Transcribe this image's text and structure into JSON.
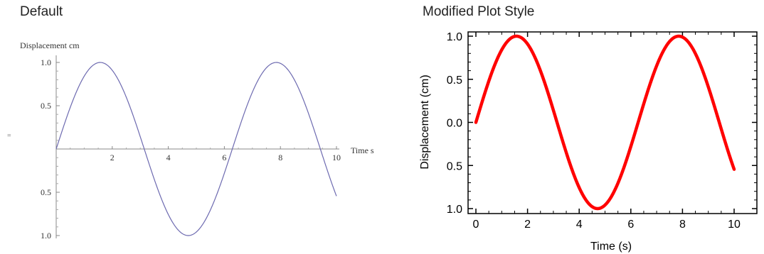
{
  "panels": {
    "left_title": "Default",
    "right_title": "Modified Plot Style"
  },
  "chart_data": [
    {
      "type": "line",
      "title": "Default",
      "xlabel": "Time  s",
      "ylabel": "Displacement  cm",
      "xlim": [
        0,
        10
      ],
      "ylim": [
        -1,
        1
      ],
      "xticks": [
        2,
        4,
        6,
        8,
        10
      ],
      "xtick_labels": [
        "2",
        "4",
        "6",
        "8",
        "10"
      ],
      "yticks": [
        1.0,
        0.5,
        -0.5,
        -1.0
      ],
      "ytick_labels": [
        "1.0",
        "0.5",
        "0.5",
        "1.0"
      ],
      "stray_mark": "=",
      "series": [
        {
          "function": "sin(t)",
          "x": [
            0,
            0.5,
            1,
            1.5,
            2,
            2.5,
            3,
            3.5,
            4,
            4.5,
            5,
            5.5,
            6,
            6.5,
            7,
            7.5,
            8,
            8.5,
            9,
            9.5,
            10
          ],
          "y": [
            0,
            0.479,
            0.841,
            0.997,
            0.909,
            0.598,
            0.141,
            -0.351,
            -0.757,
            -0.978,
            -0.959,
            -0.706,
            -0.279,
            0.215,
            0.657,
            0.938,
            0.989,
            0.798,
            0.412,
            -0.075,
            -0.544
          ],
          "color": "#6d6ab0"
        }
      ],
      "grid": false
    },
    {
      "type": "line",
      "title": "Modified Plot Style",
      "xlabel": "Time (s)",
      "ylabel": "Displacement  (cm)",
      "xlim": [
        0,
        10
      ],
      "ylim": [
        -1,
        1
      ],
      "xticks": [
        0,
        2,
        4,
        6,
        8,
        10
      ],
      "xtick_labels": [
        "0",
        "2",
        "4",
        "6",
        "8",
        "10"
      ],
      "yticks": [
        1.0,
        0.5,
        0.0,
        -0.5,
        -1.0
      ],
      "ytick_labels": [
        "1.0",
        "0.5",
        "0.0",
        "0.5",
        "1.0"
      ],
      "series": [
        {
          "function": "sin(t)",
          "x": [
            0,
            0.5,
            1,
            1.5,
            2,
            2.5,
            3,
            3.5,
            4,
            4.5,
            5,
            5.5,
            6,
            6.5,
            7,
            7.5,
            8,
            8.5,
            9,
            9.5,
            10
          ],
          "y": [
            0,
            0.479,
            0.841,
            0.997,
            0.909,
            0.598,
            0.141,
            -0.351,
            -0.757,
            -0.978,
            -0.959,
            -0.706,
            -0.279,
            0.215,
            0.657,
            0.938,
            0.989,
            0.798,
            0.412,
            -0.075,
            -0.544
          ],
          "color": "#ff0000"
        }
      ],
      "grid": false,
      "frame": true
    }
  ]
}
